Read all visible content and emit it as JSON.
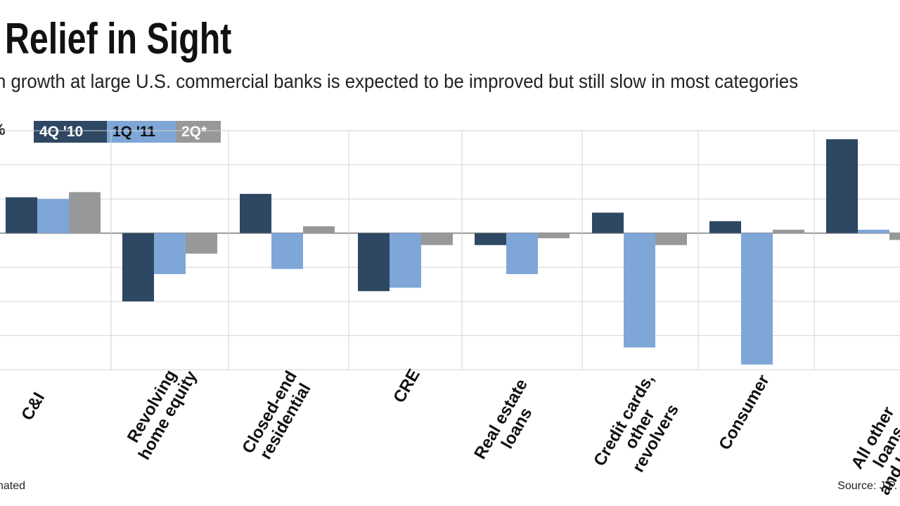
{
  "title": "o Relief in Sight",
  "subtitle": "n growth at large U.S. commercial banks is expected to be improved but still slow in most categories",
  "y_unit_label": "%",
  "footnote": "nated",
  "source": "Source: J.P. M",
  "colors": {
    "q4_10": "#2e4763",
    "q1_11": "#7ea7d8",
    "q2": "#969899",
    "grid": "#d3d3d3",
    "zero": "#999999"
  },
  "legend": [
    {
      "label": "4Q '10",
      "color": "#2e4763"
    },
    {
      "label": "1Q '11",
      "color": "#7ea7d8"
    },
    {
      "label": "2Q*",
      "color": "#969899"
    }
  ],
  "chart_data": {
    "type": "bar",
    "categories": [
      "C&I",
      "Revolving\nhome equity",
      "Closed-end\nresidential",
      "CRE",
      "Real estate\nloans",
      "Credit cards,\nother\nrevolvers",
      "Consumer",
      "All other\nloans\nand leases"
    ],
    "series": [
      {
        "name": "4Q '10",
        "values": [
          1.05,
          -2.0,
          1.15,
          -1.7,
          -0.35,
          0.6,
          0.35,
          2.75
        ]
      },
      {
        "name": "1Q '11",
        "values": [
          1.0,
          -1.2,
          -1.05,
          -1.6,
          -1.2,
          -3.35,
          -3.85,
          0.1
        ]
      },
      {
        "name": "2Q*",
        "values": [
          1.2,
          -0.6,
          0.2,
          -0.35,
          -0.15,
          -0.35,
          0.1,
          -0.2
        ]
      }
    ],
    "ylim": [
      -4,
      3
    ],
    "gridline_step": 1,
    "grid": true,
    "legend_position": "top-left"
  }
}
